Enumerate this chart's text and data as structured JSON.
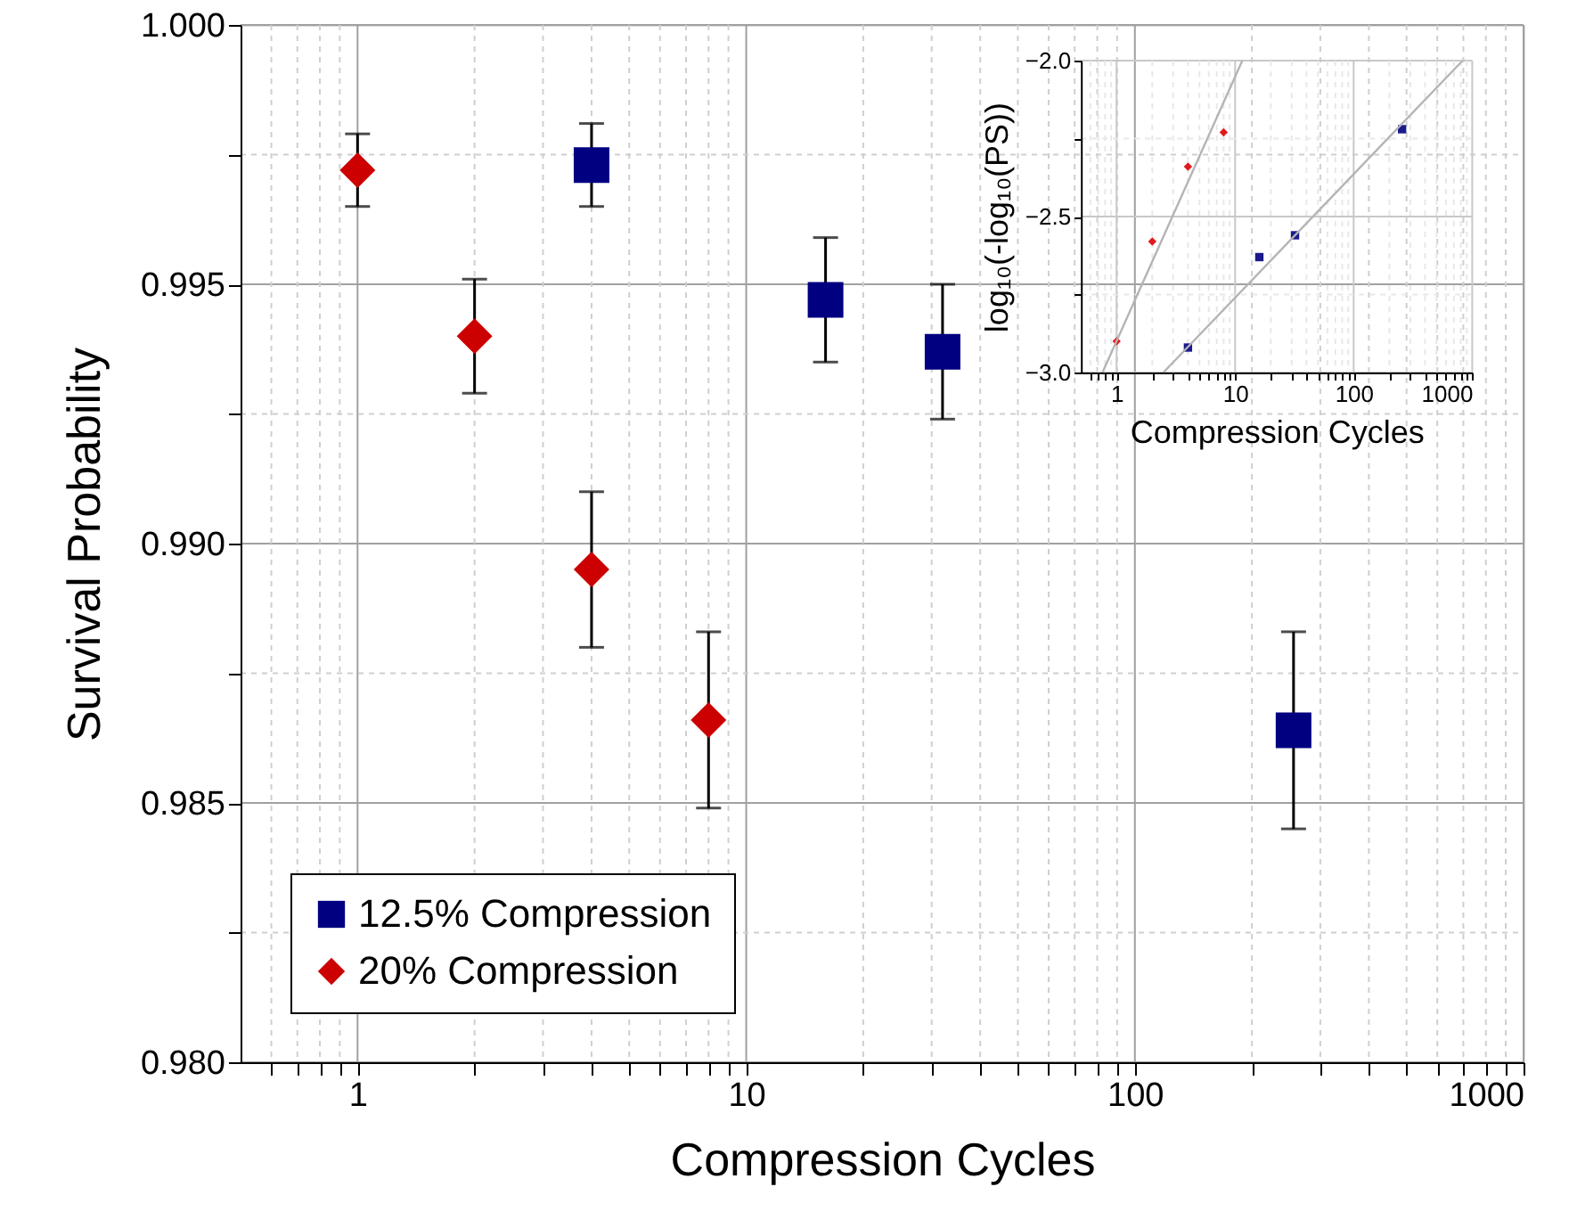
{
  "chart_data": [
    {
      "type": "scatter",
      "xlabel": "Compression Cycles",
      "ylabel": "Survival Probability",
      "log": "x",
      "xlim": [
        0.5,
        1000
      ],
      "ylim": [
        0.98,
        1.0
      ],
      "xticks": [
        {
          "value": 0.6,
          "label": null
        },
        {
          "value": 0.7,
          "label": null
        },
        {
          "value": 0.8,
          "label": null
        },
        {
          "value": 0.9,
          "label": null
        },
        1,
        {
          "value": 2,
          "label": null
        },
        {
          "value": 3,
          "label": null
        },
        {
          "value": 4,
          "label": null
        },
        {
          "value": 5,
          "label": null
        },
        {
          "value": 6,
          "label": null
        },
        {
          "value": 7,
          "label": null
        },
        {
          "value": 8,
          "label": null
        },
        {
          "value": 9,
          "label": null
        },
        10,
        {
          "value": 20,
          "label": null
        },
        {
          "value": 30,
          "label": null
        },
        {
          "value": 40,
          "label": null
        },
        {
          "value": 50,
          "label": null
        },
        {
          "value": 60,
          "label": null
        },
        {
          "value": 70,
          "label": null
        },
        {
          "value": 80,
          "label": null
        },
        {
          "value": 90,
          "label": null
        },
        100,
        {
          "value": 200,
          "label": null
        },
        {
          "value": 300,
          "label": null
        },
        {
          "value": 400,
          "label": null
        },
        {
          "value": 500,
          "label": null
        },
        {
          "value": 600,
          "label": null
        },
        {
          "value": 700,
          "label": null
        },
        {
          "value": 800,
          "label": null
        },
        {
          "value": 900,
          "label": null
        },
        1000
      ],
      "yticks": [
        {
          "value": 0.98,
          "label": "0.980"
        },
        {
          "value": 0.9825,
          "label": null
        },
        {
          "value": 0.985,
          "label": "0.985"
        },
        {
          "value": 0.9875,
          "label": null
        },
        {
          "value": 0.99,
          "label": "0.990"
        },
        {
          "value": 0.9925,
          "label": null
        },
        {
          "value": 0.995,
          "label": "0.995"
        },
        {
          "value": 0.9975,
          "label": null
        },
        {
          "value": 1.0,
          "label": "1.000"
        }
      ],
      "grid": true,
      "legend": "bottom left",
      "series": [
        {
          "name": "12.5% Compression",
          "color": "#000080",
          "marker": "square",
          "x": [
            4,
            16,
            32,
            256
          ],
          "values": [
            0.9973,
            0.9947,
            0.9937,
            0.9864
          ],
          "errors": [
            0.0008,
            0.0012,
            0.0013,
            0.0019
          ]
        },
        {
          "name": "20% Compression",
          "color": "#cc0000",
          "marker": "diamond",
          "x": [
            1,
            2,
            4,
            8
          ],
          "values": [
            0.9972,
            0.994,
            0.9895,
            0.9866
          ],
          "errors": [
            0.0007,
            0.0011,
            0.0015,
            0.0017
          ]
        }
      ]
    },
    {
      "type": "scatter",
      "xlabel": "Compression Cycles",
      "ylabel": "log₁₀(-log₁₀(PS))",
      "log": "x",
      "xlim": [
        0.5,
        1000
      ],
      "ylim": [
        -3.0,
        -2.0
      ],
      "xticks": [
        {
          "value": 0.6,
          "label": null
        },
        {
          "value": 0.7,
          "label": null
        },
        {
          "value": 0.8,
          "label": null
        },
        {
          "value": 0.9,
          "label": null
        },
        1,
        {
          "value": 2,
          "label": null
        },
        {
          "value": 3,
          "label": null
        },
        {
          "value": 4,
          "label": null
        },
        {
          "value": 5,
          "label": null
        },
        {
          "value": 6,
          "label": null
        },
        {
          "value": 7,
          "label": null
        },
        {
          "value": 8,
          "label": null
        },
        {
          "value": 9,
          "label": null
        },
        10,
        {
          "value": 20,
          "label": null
        },
        {
          "value": 30,
          "label": null
        },
        {
          "value": 40,
          "label": null
        },
        {
          "value": 50,
          "label": null
        },
        {
          "value": 60,
          "label": null
        },
        {
          "value": 70,
          "label": null
        },
        {
          "value": 80,
          "label": null
        },
        {
          "value": 90,
          "label": null
        },
        100,
        {
          "value": 200,
          "label": null
        },
        {
          "value": 300,
          "label": null
        },
        {
          "value": 400,
          "label": null
        },
        {
          "value": 500,
          "label": null
        },
        {
          "value": 600,
          "label": null
        },
        {
          "value": 700,
          "label": null
        },
        {
          "value": 800,
          "label": null
        },
        {
          "value": 900,
          "label": null
        },
        1000
      ],
      "yticks": [
        {
          "value": -3.0,
          "label": "−3.0"
        },
        {
          "value": -2.75,
          "label": null
        },
        {
          "value": -2.5,
          "label": "−2.5"
        },
        {
          "value": -2.25,
          "label": null
        },
        {
          "value": -2.0,
          "label": "−2.0"
        }
      ],
      "grid": true,
      "legend": false,
      "series": [
        {
          "color": "#1a1a8c",
          "marker": "square",
          "x": [
            4,
            16,
            32,
            256
          ],
          "values": [
            -2.92,
            -2.63,
            -2.56,
            -2.22
          ]
        },
        {
          "color": "#e31a1c",
          "marker": "diamond",
          "x": [
            1,
            2,
            4,
            8
          ],
          "values": [
            -2.9,
            -2.58,
            -2.34,
            -2.23
          ]
        },
        {
          "type": "line",
          "color": "#b4b4b4",
          "x": [
            0.76,
            11.5
          ],
          "values": [
            -3.0,
            -2.0
          ]
        },
        {
          "type": "line",
          "color": "#b4b4b4",
          "x": [
            2.48,
            830
          ],
          "values": [
            -3.0,
            -2.0
          ]
        }
      ]
    }
  ]
}
